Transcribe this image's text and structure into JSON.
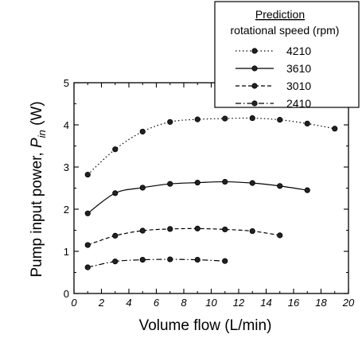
{
  "chart_data": {
    "type": "line",
    "xlabel": "Volume flow (L/min)",
    "ylabel_main": "Pump input power, ",
    "ylabel_var": "P",
    "ylabel_sub": "in",
    "ylabel_unit": " (W)",
    "xlim": [
      0,
      20
    ],
    "ylim": [
      0,
      5
    ],
    "xticks": [
      "0",
      "2",
      "4",
      "6",
      "8",
      "10",
      "12",
      "14",
      "16",
      "18",
      "20"
    ],
    "yticks": [
      "0",
      "1",
      "2",
      "3",
      "4",
      "5"
    ],
    "grid": false,
    "legend": {
      "title": "Prediction",
      "subtitle": "rotational speed (rpm)",
      "placement": "top-right"
    },
    "series": [
      {
        "name": "4210",
        "dash": "dotted",
        "x": [
          1,
          3,
          5,
          7,
          9,
          11,
          13,
          15,
          17,
          19
        ],
        "y": [
          2.82,
          3.42,
          3.84,
          4.07,
          4.13,
          4.15,
          4.16,
          4.12,
          4.03,
          3.91
        ]
      },
      {
        "name": "3610",
        "dash": "solid",
        "x": [
          1,
          3,
          5,
          7,
          9,
          11,
          13,
          15,
          17
        ],
        "y": [
          1.9,
          2.38,
          2.51,
          2.6,
          2.63,
          2.65,
          2.62,
          2.55,
          2.45
        ]
      },
      {
        "name": "3010",
        "dash": "dashed",
        "x": [
          1,
          3,
          5,
          7,
          9,
          11,
          13,
          15
        ],
        "y": [
          1.15,
          1.37,
          1.49,
          1.53,
          1.54,
          1.52,
          1.48,
          1.38
        ]
      },
      {
        "name": "2410",
        "dash": "dashdot",
        "x": [
          1,
          3,
          5,
          7,
          9,
          11
        ],
        "y": [
          0.62,
          0.76,
          0.8,
          0.81,
          0.8,
          0.77
        ]
      }
    ]
  }
}
